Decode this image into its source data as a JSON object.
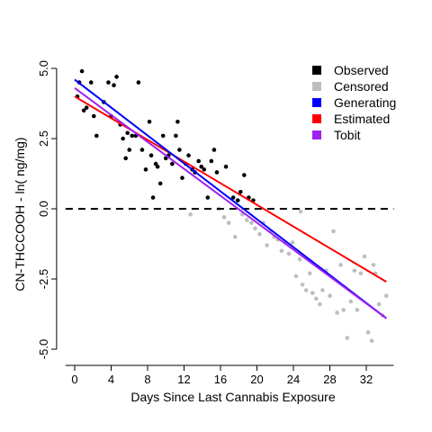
{
  "chart_data": {
    "type": "scatter",
    "xlabel": "Days Since Last Cannabis Exposure",
    "ylabel": "CN-THCCOOH - ln( ng/mg)",
    "xlim": [
      -1,
      35
    ],
    "ylim": [
      -5,
      5
    ],
    "x_ticks": [
      0,
      4,
      8,
      12,
      16,
      20,
      24,
      28,
      32
    ],
    "y_ticks": [
      -5.0,
      -2.5,
      0.0,
      2.5,
      5.0
    ],
    "y_tick_labels": [
      "-5.0",
      "-2.5",
      "0.0",
      "2.5",
      "5.0"
    ],
    "grid": false,
    "legend_position": "top-right",
    "reference_line": {
      "y": 0,
      "style": "dashed",
      "color": "#000000"
    },
    "legend": [
      {
        "label": "Observed",
        "color": "#000000"
      },
      {
        "label": "Censored",
        "color": "#bebebe"
      },
      {
        "label": "Generating",
        "color": "#0000ff"
      },
      {
        "label": "Estimated",
        "color": "#ff0000"
      },
      {
        "label": "Tobit",
        "color": "#a020f0"
      }
    ],
    "observed": {
      "color": "#000000",
      "points": [
        [
          0.3,
          4.0
        ],
        [
          0.5,
          4.5
        ],
        [
          0.8,
          4.9
        ],
        [
          1.0,
          3.5
        ],
        [
          1.3,
          3.6
        ],
        [
          1.8,
          4.5
        ],
        [
          2.1,
          3.3
        ],
        [
          2.4,
          2.6
        ],
        [
          3.2,
          3.8
        ],
        [
          3.7,
          4.5
        ],
        [
          4.0,
          3.3
        ],
        [
          4.3,
          4.4
        ],
        [
          4.6,
          4.7
        ],
        [
          5.0,
          3.0
        ],
        [
          5.3,
          2.5
        ],
        [
          5.6,
          1.8
        ],
        [
          5.8,
          2.7
        ],
        [
          6.0,
          2.1
        ],
        [
          6.3,
          2.6
        ],
        [
          6.7,
          2.6
        ],
        [
          7.0,
          4.5
        ],
        [
          7.4,
          2.1
        ],
        [
          7.8,
          1.4
        ],
        [
          8.2,
          3.1
        ],
        [
          8.4,
          1.9
        ],
        [
          8.6,
          0.4
        ],
        [
          8.9,
          1.6
        ],
        [
          9.1,
          1.5
        ],
        [
          9.4,
          0.9
        ],
        [
          9.7,
          2.6
        ],
        [
          10.0,
          1.8
        ],
        [
          10.3,
          1.9
        ],
        [
          10.7,
          1.6
        ],
        [
          11.1,
          2.6
        ],
        [
          11.3,
          3.1
        ],
        [
          11.5,
          2.1
        ],
        [
          11.8,
          1.1
        ],
        [
          12.2,
          1.6
        ],
        [
          12.5,
          1.9
        ],
        [
          12.9,
          1.4
        ],
        [
          13.2,
          1.3
        ],
        [
          13.6,
          1.7
        ],
        [
          13.9,
          1.5
        ],
        [
          14.2,
          1.4
        ],
        [
          14.6,
          0.4
        ],
        [
          15.0,
          1.7
        ],
        [
          15.3,
          2.1
        ],
        [
          15.6,
          1.3
        ],
        [
          16.6,
          1.5
        ],
        [
          17.4,
          0.4
        ],
        [
          17.9,
          0.3
        ],
        [
          18.2,
          0.6
        ],
        [
          18.6,
          1.2
        ],
        [
          19.1,
          0.4
        ],
        [
          19.6,
          0.3
        ]
      ]
    },
    "censored": {
      "color": "#bebebe",
      "points": [
        [
          12.7,
          -0.2
        ],
        [
          15.8,
          0.0
        ],
        [
          16.4,
          -0.3
        ],
        [
          16.9,
          -0.5
        ],
        [
          17.6,
          -1.0
        ],
        [
          18.4,
          -0.2
        ],
        [
          18.9,
          -0.4
        ],
        [
          19.4,
          -0.5
        ],
        [
          19.8,
          -0.7
        ],
        [
          20.3,
          -0.9
        ],
        [
          20.7,
          -0.5
        ],
        [
          21.1,
          -1.3
        ],
        [
          21.5,
          -0.8
        ],
        [
          21.9,
          -1.0
        ],
        [
          22.3,
          -1.1
        ],
        [
          22.7,
          -1.5
        ],
        [
          23.1,
          -1.2
        ],
        [
          23.5,
          -1.6
        ],
        [
          23.9,
          -1.2
        ],
        [
          24.3,
          -2.4
        ],
        [
          24.7,
          -1.8
        ],
        [
          25.0,
          -2.7
        ],
        [
          25.4,
          -2.9
        ],
        [
          25.8,
          -2.3
        ],
        [
          26.1,
          -3.0
        ],
        [
          26.5,
          -3.2
        ],
        [
          26.9,
          -3.4
        ],
        [
          27.2,
          -2.9
        ],
        [
          27.6,
          -2.2
        ],
        [
          28.0,
          -3.1
        ],
        [
          28.4,
          -0.8
        ],
        [
          28.8,
          -3.7
        ],
        [
          29.2,
          -2.0
        ],
        [
          29.5,
          -3.6
        ],
        [
          29.9,
          -4.6
        ],
        [
          30.3,
          -3.3
        ],
        [
          30.7,
          -2.2
        ],
        [
          31.0,
          -3.6
        ],
        [
          31.4,
          -2.3
        ],
        [
          31.8,
          -1.7
        ],
        [
          32.2,
          -4.4
        ],
        [
          32.6,
          -4.7
        ],
        [
          33.0,
          -2.3
        ],
        [
          33.4,
          -3.4
        ],
        [
          33.8,
          -3.8
        ],
        [
          34.2,
          -3.1
        ],
        [
          24.8,
          -0.1
        ],
        [
          32.8,
          -2.0
        ]
      ]
    },
    "lines": [
      {
        "name": "Estimated",
        "color": "#ff0000",
        "x": [
          0,
          34.2
        ],
        "y": [
          4.0,
          -2.6
        ]
      },
      {
        "name": "Generating",
        "color": "#0000ff",
        "x": [
          0,
          34.2
        ],
        "y": [
          4.6,
          -3.9
        ]
      },
      {
        "name": "Tobit",
        "color": "#a020f0",
        "x": [
          0,
          34.2
        ],
        "y": [
          4.3,
          -3.9
        ]
      }
    ]
  }
}
